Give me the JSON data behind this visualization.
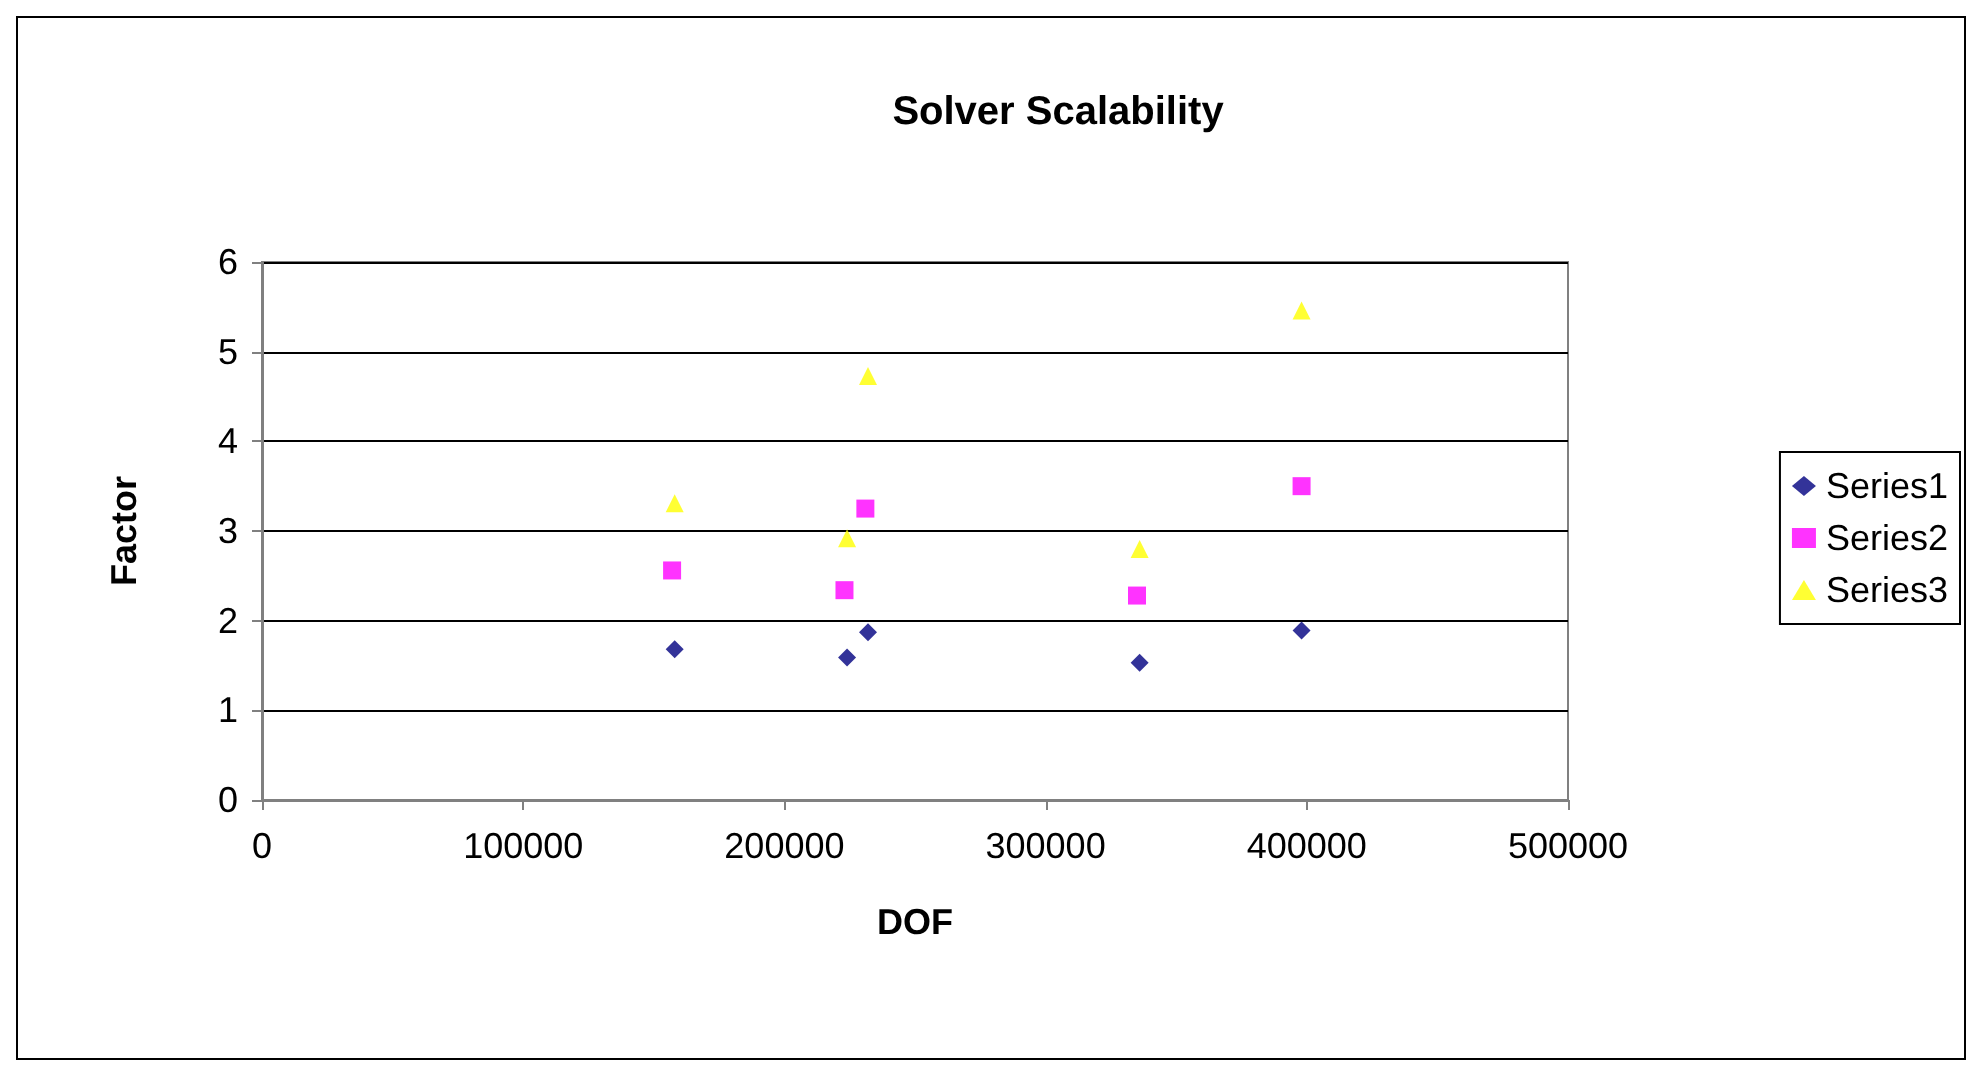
{
  "chart_data": {
    "type": "scatter",
    "title": "Solver Scalability",
    "xlabel": "DOF",
    "ylabel": "Factor",
    "xlim": [
      0,
      500000
    ],
    "xticks": [
      0,
      100000,
      200000,
      300000,
      400000,
      500000
    ],
    "ylim": [
      0,
      6
    ],
    "yticks": [
      0,
      1,
      2,
      3,
      4,
      5,
      6
    ],
    "grid": "y",
    "legend": "right",
    "series": [
      {
        "name": "Series1",
        "color": "#000080",
        "marker": "diamond",
        "x": [
          158000,
          224000,
          232000,
          336000,
          398000
        ],
        "values": [
          1.68,
          1.59,
          1.87,
          1.53,
          1.89
        ]
      },
      {
        "name": "Series2",
        "color": "#ff00ff",
        "marker": "square",
        "x": [
          157000,
          223000,
          231000,
          335000,
          398000
        ],
        "values": [
          2.56,
          2.34,
          3.25,
          2.28,
          3.5
        ]
      },
      {
        "name": "Series3",
        "color": "#ffff00",
        "marker": "triangle",
        "x": [
          158000,
          224000,
          232000,
          336000,
          398000
        ],
        "values": [
          3.31,
          2.92,
          4.73,
          2.8,
          5.46
        ]
      }
    ]
  }
}
